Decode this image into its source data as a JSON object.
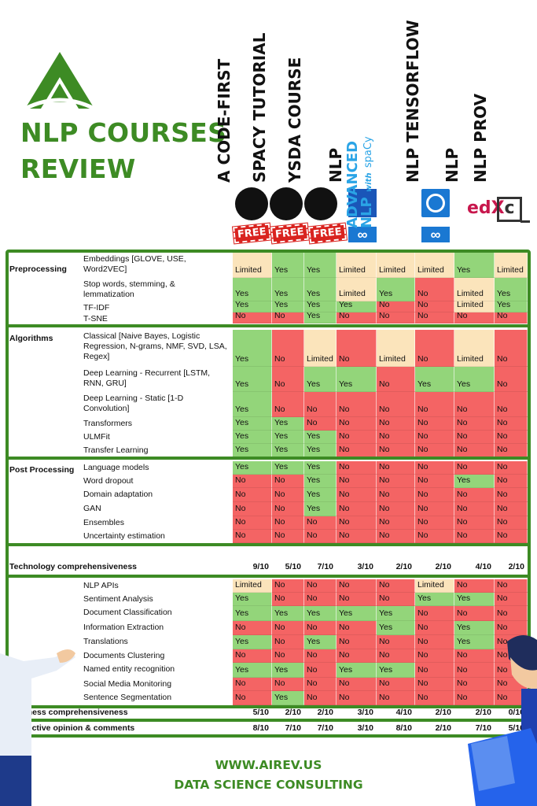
{
  "title": {
    "line1": "NLP COURSES",
    "line2": "REVIEW"
  },
  "colors": {
    "yes": "#93d57a",
    "no": "#f46464",
    "limited": "#fbe4bb",
    "brand": "#3d8b24"
  },
  "columns": [
    {
      "name": "A CODE-FIRST",
      "icon": "github-icon",
      "badge": "FREE"
    },
    {
      "name": "SPACY TUTORIAL",
      "icon": "github-icon",
      "badge": "FREE"
    },
    {
      "name": "YSDA COURSE",
      "icon": "github-icon",
      "badge": "FREE"
    },
    {
      "name": "NLP",
      "icon": "university-crest-icon",
      "badge": ""
    },
    {
      "name": "",
      "icon": "advanced-nlp-spacy-logo",
      "badge": ""
    },
    {
      "name": "NLP TENSORFLOW",
      "icon": "tensorflow-course-icon",
      "badge": ""
    },
    {
      "name": "NLP",
      "icon": "edx-logo",
      "badge": ""
    },
    {
      "name": "NLP PROV",
      "icon": "coursera-c-icon",
      "badge": ""
    }
  ],
  "advanced_logo": {
    "line1": "ADVANCED",
    "line2": "NLP",
    "with": "with",
    "spacy": "spaCy"
  },
  "edx_logo": "edX",
  "coursera_logo": "c",
  "sections": [
    {
      "category": "Preprocessing",
      "rows": [
        {
          "label": "Embeddings [GLOVE, USE, Word2VEC]",
          "values": [
            "Limited",
            "Yes",
            "Yes",
            "Limited",
            "Limited",
            "Limited",
            "Yes",
            "Limited"
          ]
        },
        {
          "label": "Stop words, stemming, & lemmatization",
          "values": [
            "Yes",
            "Yes",
            "Yes",
            "Limited",
            "Yes",
            "No",
            "Limited",
            "Yes"
          ]
        },
        {
          "label": "TF-IDF",
          "values": [
            "Yes",
            "Yes",
            "Yes",
            "Yes",
            "No",
            "No",
            "Limited",
            "Yes"
          ]
        },
        {
          "label": "T-SNE",
          "values": [
            "No",
            "No",
            "Yes",
            "No",
            "No",
            "No",
            "No",
            "No"
          ]
        }
      ]
    },
    {
      "category": "Algorithms",
      "rows": [
        {
          "label": "Classical [Naive Bayes, Logistic Regression, N-grams, NMF, SVD, LSA, Regex]",
          "values": [
            "Yes",
            "No",
            "Limited",
            "No",
            "Limited",
            "No",
            "Limited",
            "No"
          ]
        },
        {
          "label": "Deep Learning - Recurrent [LSTM, RNN, GRU]",
          "values": [
            "Yes",
            "No",
            "Yes",
            "Yes",
            "No",
            "Yes",
            "Yes",
            "No"
          ]
        },
        {
          "label": "Deep Learning - Static [1-D Convolution]",
          "values": [
            "Yes",
            "No",
            "No",
            "No",
            "No",
            "No",
            "No",
            "No"
          ]
        },
        {
          "label": "Transformers",
          "values": [
            "Yes",
            "Yes",
            "No",
            "No",
            "No",
            "No",
            "No",
            "No"
          ]
        },
        {
          "label": "ULMFit",
          "values": [
            "Yes",
            "Yes",
            "Yes",
            "No",
            "No",
            "No",
            "No",
            "No"
          ]
        },
        {
          "label": "Transfer Learning",
          "values": [
            "Yes",
            "Yes",
            "Yes",
            "No",
            "No",
            "No",
            "No",
            "No"
          ]
        }
      ]
    },
    {
      "category": "Post Processing",
      "rows": [
        {
          "label": "Language models",
          "values": [
            "Yes",
            "Yes",
            "Yes",
            "No",
            "No",
            "No",
            "No",
            "No"
          ]
        },
        {
          "label": "Word dropout",
          "values": [
            "No",
            "No",
            "Yes",
            "No",
            "No",
            "No",
            "Yes",
            "No"
          ]
        },
        {
          "label": "Domain adaptation",
          "values": [
            "No",
            "No",
            "Yes",
            "No",
            "No",
            "No",
            "No",
            "No"
          ]
        },
        {
          "label": "GAN",
          "values": [
            "No",
            "No",
            "Yes",
            "No",
            "No",
            "No",
            "No",
            "No"
          ]
        },
        {
          "label": "Ensembles",
          "values": [
            "No",
            "No",
            "No",
            "No",
            "No",
            "No",
            "No",
            "No"
          ]
        },
        {
          "label": "Uncertainty estimation",
          "values": [
            "No",
            "No",
            "No",
            "No",
            "No",
            "No",
            "No",
            "No"
          ]
        }
      ]
    }
  ],
  "technology": {
    "label": "Technology comprehensiveness",
    "scores": [
      "9/10",
      "5/10",
      "7/10",
      "3/10",
      "2/10",
      "2/10",
      "4/10",
      "2/10"
    ]
  },
  "business_rows": [
    {
      "label": "NLP APIs",
      "values": [
        "Limited",
        "No",
        "No",
        "No",
        "No",
        "Limited",
        "No",
        "No"
      ]
    },
    {
      "label": "Sentiment Analysis",
      "values": [
        "Yes",
        "No",
        "No",
        "No",
        "No",
        "Yes",
        "Yes",
        "No"
      ]
    },
    {
      "label": "Document Classification",
      "values": [
        "Yes",
        "Yes",
        "Yes",
        "Yes",
        "Yes",
        "No",
        "No",
        "No"
      ]
    },
    {
      "label": "Information Extraction",
      "values": [
        "No",
        "No",
        "No",
        "No",
        "Yes",
        "No",
        "Yes",
        "No"
      ]
    },
    {
      "label": "Translations",
      "values": [
        "Yes",
        "No",
        "Yes",
        "No",
        "No",
        "No",
        "Yes",
        "No"
      ]
    },
    {
      "label": "Documents Clustering",
      "values": [
        "No",
        "No",
        "No",
        "No",
        "No",
        "No",
        "No",
        "No"
      ]
    },
    {
      "label": "Named entity recognition",
      "values": [
        "Yes",
        "Yes",
        "No",
        "Yes",
        "Yes",
        "No",
        "No",
        "No"
      ]
    },
    {
      "label": "Social Media Monitoring",
      "values": [
        "No",
        "No",
        "No",
        "No",
        "No",
        "No",
        "No",
        "No"
      ]
    },
    {
      "label": "Sentence Segmentation",
      "values": [
        "No",
        "Yes",
        "No",
        "No",
        "No",
        "No",
        "No",
        "No"
      ]
    }
  ],
  "business": {
    "label": "Business comprehensiveness",
    "scores": [
      "5/10",
      "2/10",
      "2/10",
      "3/10",
      "4/10",
      "2/10",
      "2/10",
      "0/10"
    ]
  },
  "opinion": {
    "label": "Subjective opinion & comments",
    "scores": [
      "8/10",
      "7/10",
      "7/10",
      "3/10",
      "8/10",
      "2/10",
      "7/10",
      "5/10"
    ]
  },
  "footer": {
    "line1": "WWW.AIREV.US",
    "line2": "DATA SCIENCE CONSULTING"
  }
}
